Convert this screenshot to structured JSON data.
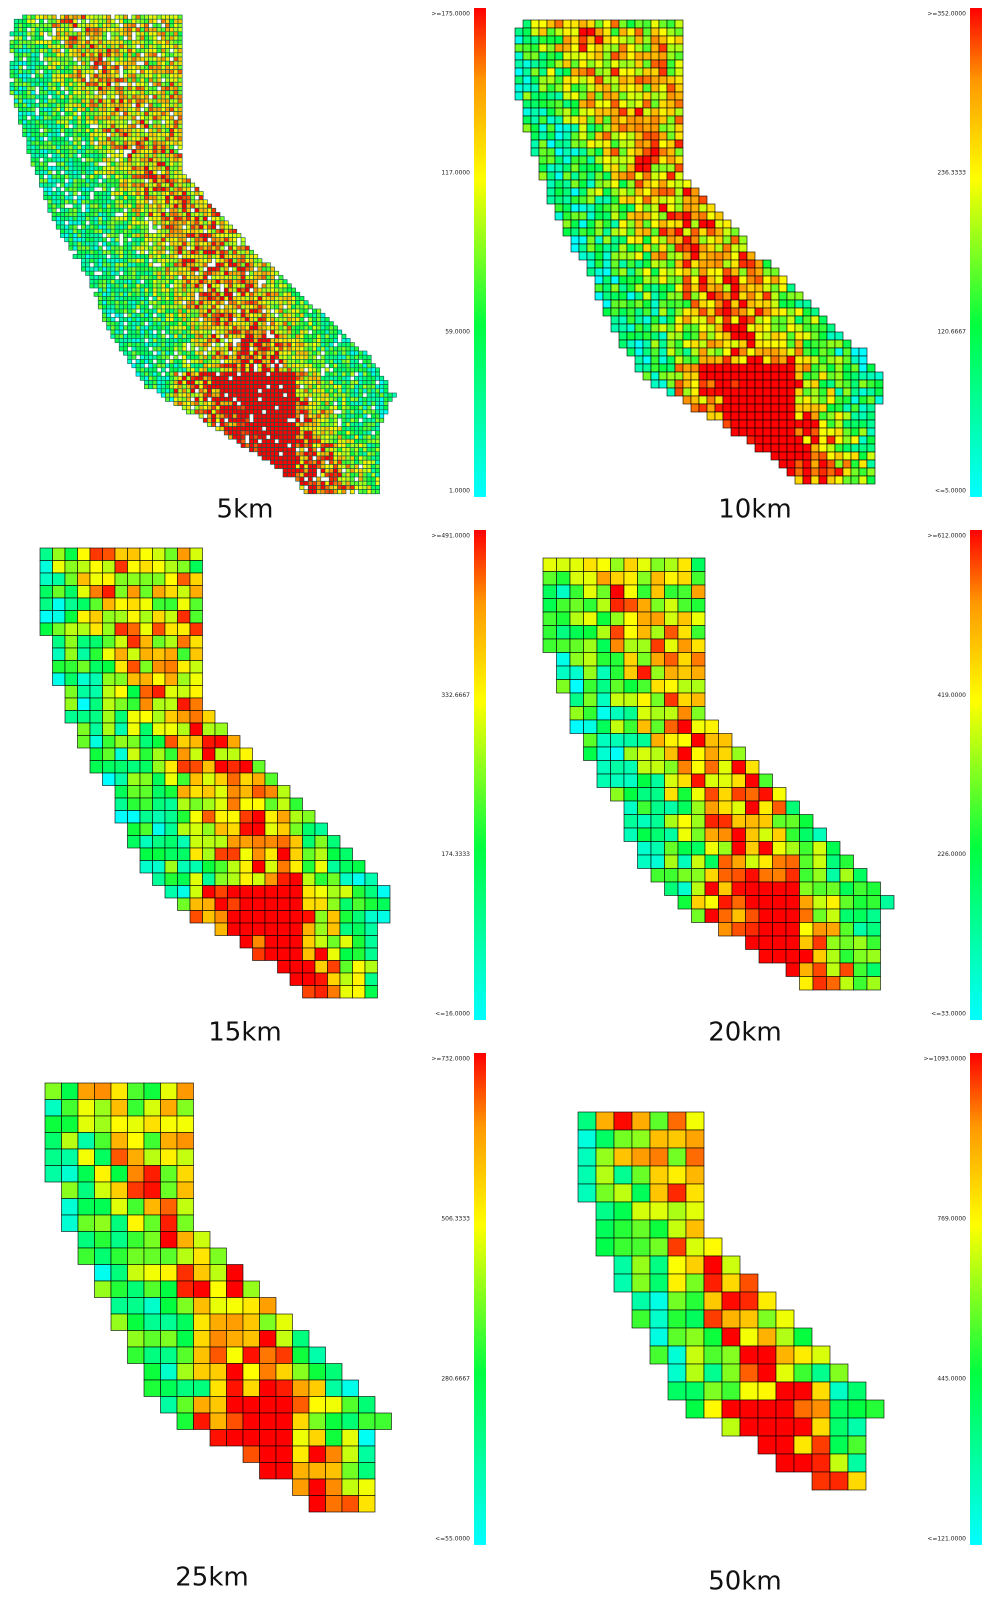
{
  "panels": [
    {
      "label": "5km",
      "legend": [
        ">=175.0000",
        "117.0000",
        "59.0000",
        "1.0000"
      ]
    },
    {
      "label": "10km",
      "legend": [
        ">=352.0000",
        "236.3333",
        "120.6667",
        "<=5.0000"
      ]
    },
    {
      "label": "15km",
      "legend": [
        ">=491.0000",
        "332.6667",
        "174.3333",
        "<=16.0000"
      ]
    },
    {
      "label": "20km",
      "legend": [
        ">=612.0000",
        "419.0000",
        "226.0000",
        "<=33.0000"
      ]
    },
    {
      "label": "25km",
      "legend": [
        ">=732.0000",
        "506.3333",
        "280.6667",
        "<=55.0000"
      ]
    },
    {
      "label": "50km",
      "legend": [
        ">=1093.0000",
        "769.0000",
        "445.0000",
        "<=121.0000"
      ]
    }
  ]
}
